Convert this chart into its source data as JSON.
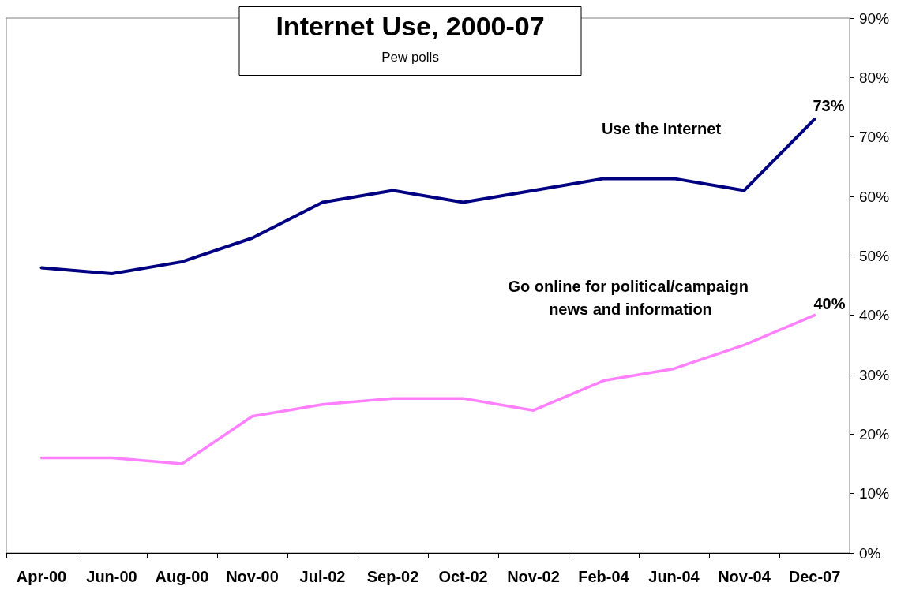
{
  "chart_data": {
    "type": "line",
    "title": "Internet Use, 2000-07",
    "subtitle": "Pew polls",
    "categories": [
      "Apr-00",
      "Jun-00",
      "Aug-00",
      "Nov-00",
      "Jul-02",
      "Sep-02",
      "Oct-02",
      "Nov-02",
      "Feb-04",
      "Jun-04",
      "Nov-04",
      "Dec-07"
    ],
    "series": [
      {
        "name": "Use the Internet",
        "color": "#000080",
        "values": [
          48,
          47,
          49,
          53,
          59,
          61,
          59,
          61,
          63,
          63,
          61,
          73
        ],
        "value_labels": [
          null,
          null,
          null,
          null,
          null,
          null,
          null,
          null,
          null,
          null,
          null,
          "73%"
        ]
      },
      {
        "name": "Go online for political/campaign news and information",
        "color": "#ff80ff",
        "values": [
          16,
          16,
          15,
          23,
          25,
          26,
          26,
          24,
          29,
          31,
          35,
          40
        ],
        "value_labels": [
          null,
          null,
          null,
          null,
          null,
          null,
          null,
          null,
          null,
          null,
          null,
          "40%"
        ]
      }
    ],
    "ylim": [
      0,
      90
    ],
    "yticks": [
      {
        "value": 0,
        "label": "0%"
      },
      {
        "value": 10,
        "label": "10%"
      },
      {
        "value": 20,
        "label": "20%"
      },
      {
        "value": 30,
        "label": "30%"
      },
      {
        "value": 40,
        "label": "40%"
      },
      {
        "value": 50,
        "label": "50%"
      },
      {
        "value": 60,
        "label": "60%"
      },
      {
        "value": 70,
        "label": "70%"
      },
      {
        "value": 80,
        "label": "80%"
      },
      {
        "value": 90,
        "label": "90%"
      }
    ]
  }
}
